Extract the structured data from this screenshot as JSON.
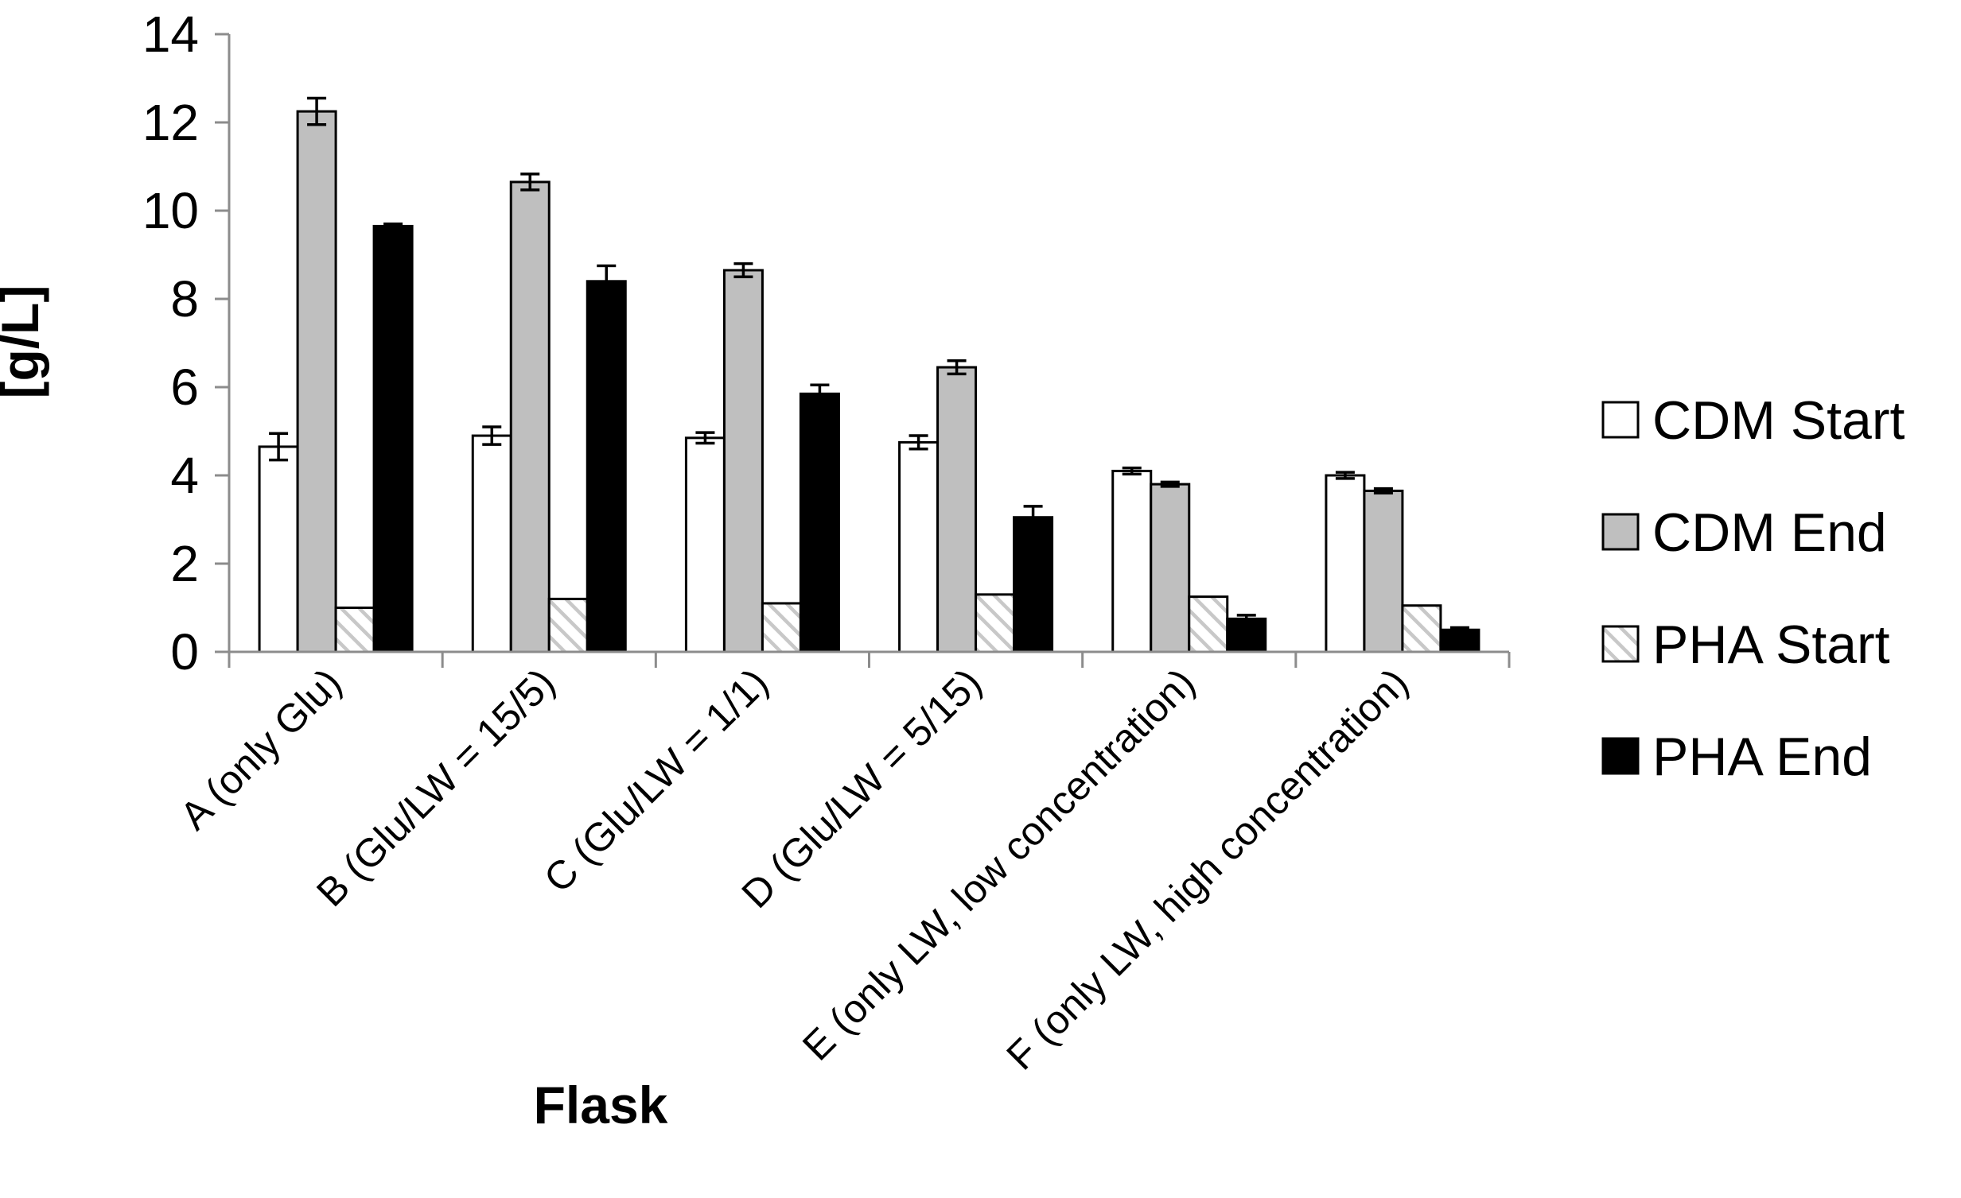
{
  "chart_data": {
    "type": "bar",
    "title": "",
    "xlabel": "Flask",
    "ylabel": "[g/L]",
    "ylim": [
      0,
      14
    ],
    "yticks": [
      0,
      2,
      4,
      6,
      8,
      10,
      12,
      14
    ],
    "grid": false,
    "legend_position": "right",
    "categories": [
      "A (only Glu)",
      "B (Glu/LW = 15/5)",
      "C (Glu/LW = 1/1)",
      "D (Glu/LW = 5/15)",
      "E (only LW, low concentration)",
      "F (only LW, high concentration)"
    ],
    "series": [
      {
        "name": "CDM Start",
        "fill": "#ffffff",
        "pattern": "solid",
        "values": [
          4.65,
          4.9,
          4.85,
          4.75,
          4.1,
          4.0
        ],
        "errors": [
          0.3,
          0.2,
          0.12,
          0.15,
          0.07,
          0.07
        ]
      },
      {
        "name": "CDM End",
        "fill": "#bfbfbf",
        "pattern": "solid",
        "values": [
          12.25,
          10.65,
          8.65,
          6.45,
          3.8,
          3.65
        ],
        "errors": [
          0.3,
          0.18,
          0.15,
          0.15,
          0.05,
          0.05
        ]
      },
      {
        "name": "PHA Start",
        "fill": "#ffffff",
        "pattern": "diagonal-hatch",
        "values": [
          1.0,
          1.2,
          1.1,
          1.3,
          1.25,
          1.05
        ],
        "errors": [
          0,
          0,
          0,
          0,
          0,
          0
        ]
      },
      {
        "name": "PHA End",
        "fill": "#000000",
        "pattern": "solid",
        "values": [
          9.65,
          8.4,
          5.85,
          3.05,
          0.75,
          0.5
        ],
        "errors": [
          0.05,
          0.35,
          0.2,
          0.25,
          0.08,
          0.05
        ]
      }
    ]
  }
}
